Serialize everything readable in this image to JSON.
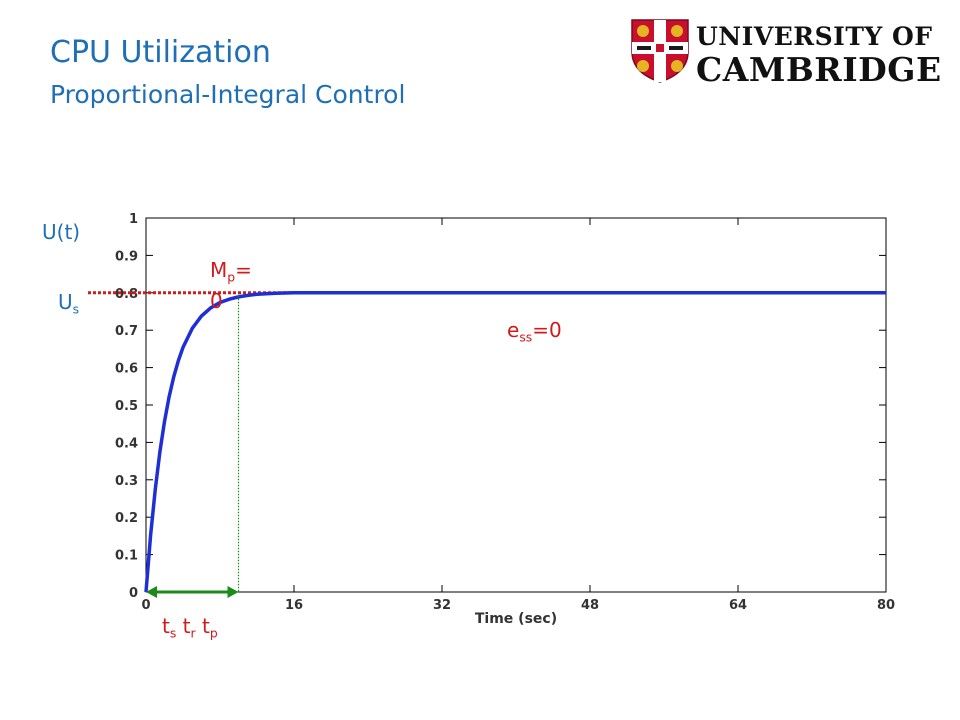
{
  "slide": {
    "title": "CPU Utilization",
    "subtitle": "Proportional-Integral Control"
  },
  "logo": {
    "line1": "UNIVERSITY OF",
    "line2": "CAMBRIDGE",
    "colors": {
      "shield_red": "#c8102e",
      "lion_gold": "#e6b422",
      "band_white": "#ffffff"
    }
  },
  "annotations": {
    "u_of_t": "U(t)",
    "us_main": "U",
    "us_sub": "s",
    "mp_main": "M",
    "mp_sub": "p",
    "mp_value": "= 0",
    "ess_main": "e",
    "ess_sub": "ss",
    "ess_value": "=0",
    "ts_main": "t",
    "ts_sub": "s",
    "tr_main": "t",
    "tr_sub": "r",
    "tp_main": "t",
    "tp_sub": "p"
  },
  "chart_data": {
    "type": "line",
    "xlabel": "Time (sec)",
    "ylabel": "",
    "xlim": [
      0,
      80
    ],
    "ylim": [
      0,
      1
    ],
    "x_ticks": [
      0,
      16,
      32,
      48,
      64,
      80
    ],
    "y_ticks": [
      0,
      0.1,
      0.2,
      0.3,
      0.4,
      0.5,
      0.6,
      0.7,
      0.8,
      0.9,
      1
    ],
    "grid": false,
    "series": [
      {
        "name": "",
        "color": "#1f2fd6",
        "x": [
          0,
          0.5,
          1,
          1.5,
          2,
          2.5,
          3,
          3.5,
          4,
          5,
          6,
          7,
          8,
          9,
          10,
          11,
          12,
          14,
          16,
          20,
          24,
          28,
          32,
          40,
          48,
          56,
          64,
          72,
          80
        ],
        "y": [
          0,
          0.152,
          0.275,
          0.375,
          0.456,
          0.522,
          0.576,
          0.619,
          0.654,
          0.705,
          0.738,
          0.76,
          0.774,
          0.783,
          0.789,
          0.793,
          0.796,
          0.799,
          0.8,
          0.8,
          0.8,
          0.8,
          0.8,
          0.8,
          0.8,
          0.8,
          0.8,
          0.8,
          0.8
        ]
      }
    ],
    "reference": {
      "name": "",
      "value": 0.8,
      "color": "#d11a1a"
    },
    "settling_time": 10,
    "colors": {
      "axis": "#000000",
      "marker_green": "#1a8a1a"
    }
  }
}
